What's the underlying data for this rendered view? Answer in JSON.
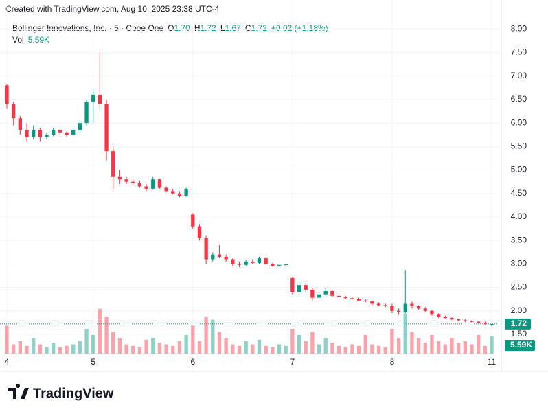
{
  "header": {
    "watermark": "Created with TradingView.com, Aug 10, 2025 23:38 UTC-4",
    "logo": "TradingView"
  },
  "chart_data": {
    "type": "candlestick",
    "legend": {
      "symbol": "Bollinger Innovations, Inc. · 5 · Cboe One",
      "open_label": "O",
      "open": "1.70",
      "high_label": "H",
      "high": "1.72",
      "low_label": "L",
      "low": "1.67",
      "close_label": "C",
      "close": "1.72",
      "change": "+0.02 (+1.18%)",
      "volume_label": "Vol"
    },
    "categories": [
      "4",
      null,
      null,
      null,
      null,
      null,
      null,
      null,
      null,
      null,
      null,
      null,
      null,
      "5",
      null,
      null,
      null,
      null,
      null,
      null,
      null,
      null,
      null,
      null,
      null,
      null,
      null,
      null,
      "6",
      null,
      null,
      null,
      null,
      null,
      null,
      null,
      null,
      null,
      null,
      null,
      null,
      null,
      null,
      "7",
      null,
      null,
      null,
      null,
      null,
      null,
      null,
      null,
      null,
      null,
      null,
      null,
      null,
      null,
      "8",
      null,
      null,
      null,
      null,
      null,
      null,
      null,
      null,
      null,
      null,
      null,
      null,
      null,
      null,
      "11"
    ],
    "open": [
      6.8,
      6.4,
      6.1,
      5.85,
      5.7,
      5.85,
      5.7,
      5.75,
      5.85,
      5.8,
      5.75,
      5.85,
      6.0,
      6.45,
      6.6,
      6.4,
      5.4,
      4.85,
      4.8,
      4.75,
      4.72,
      4.65,
      4.6,
      4.8,
      4.62,
      4.55,
      4.5,
      4.45,
      4.05,
      3.8,
      3.55,
      3.1,
      3.2,
      3.15,
      3.1,
      3.0,
      2.98,
      3.05,
      3.02,
      3.12,
      3.0,
      2.96,
      2.98,
      2.7,
      2.4,
      2.55,
      2.45,
      2.28,
      2.35,
      2.42,
      2.32,
      2.3,
      2.27,
      2.26,
      2.22,
      2.2,
      2.15,
      2.12,
      2.1,
      2.0,
      1.98,
      2.15,
      2.1,
      2.05,
      2.0,
      1.92,
      1.88,
      1.85,
      1.82,
      1.8,
      1.78,
      1.77,
      1.75,
      1.7
    ],
    "high": [
      6.82,
      6.45,
      6.15,
      6.0,
      5.95,
      5.9,
      5.8,
      5.9,
      5.88,
      5.82,
      5.9,
      6.05,
      6.5,
      6.7,
      7.5,
      6.5,
      5.5,
      5.0,
      4.85,
      4.8,
      4.78,
      4.7,
      4.85,
      4.82,
      4.65,
      4.6,
      4.55,
      4.62,
      4.08,
      3.85,
      3.6,
      3.25,
      3.4,
      3.2,
      3.12,
      3.05,
      3.08,
      3.1,
      3.15,
      3.14,
      3.02,
      3.0,
      3.0,
      2.72,
      2.65,
      2.6,
      2.48,
      2.4,
      2.48,
      2.44,
      2.35,
      2.32,
      2.3,
      2.28,
      2.25,
      2.22,
      2.18,
      2.15,
      2.15,
      2.05,
      2.87,
      2.2,
      2.12,
      2.08,
      2.02,
      1.95,
      1.9,
      1.87,
      1.84,
      1.82,
      1.8,
      1.79,
      1.77,
      1.72
    ],
    "low": [
      6.3,
      5.95,
      5.75,
      5.6,
      5.65,
      5.6,
      5.65,
      5.72,
      5.75,
      5.7,
      5.72,
      5.8,
      5.95,
      6.0,
      6.3,
      5.2,
      4.6,
      4.7,
      4.7,
      4.68,
      4.62,
      4.55,
      4.58,
      4.6,
      4.52,
      4.48,
      4.42,
      4.43,
      3.75,
      3.5,
      3.0,
      3.05,
      3.12,
      3.05,
      2.95,
      2.93,
      2.95,
      3.0,
      3.0,
      2.98,
      2.94,
      2.92,
      2.95,
      2.35,
      2.38,
      2.4,
      2.22,
      2.25,
      2.33,
      2.3,
      2.27,
      2.25,
      2.24,
      2.2,
      2.18,
      2.12,
      2.1,
      2.08,
      1.95,
      1.92,
      1.95,
      2.05,
      2.02,
      1.98,
      1.9,
      1.85,
      1.82,
      1.8,
      1.78,
      1.76,
      1.75,
      1.73,
      1.7,
      1.67
    ],
    "close": [
      6.4,
      6.1,
      5.85,
      5.7,
      5.85,
      5.7,
      5.75,
      5.85,
      5.8,
      5.75,
      5.85,
      6.0,
      6.45,
      6.6,
      6.4,
      5.4,
      4.85,
      4.8,
      4.75,
      4.72,
      4.65,
      4.6,
      4.8,
      4.62,
      4.55,
      4.5,
      4.45,
      4.6,
      3.8,
      3.55,
      3.1,
      3.2,
      3.15,
      3.1,
      3.0,
      2.98,
      3.05,
      3.02,
      3.12,
      3.0,
      2.96,
      2.98,
      2.99,
      2.4,
      2.55,
      2.45,
      2.28,
      2.35,
      2.42,
      2.32,
      2.3,
      2.27,
      2.26,
      2.22,
      2.2,
      2.15,
      2.12,
      2.1,
      2.0,
      1.98,
      2.15,
      2.1,
      2.05,
      2.0,
      1.92,
      1.88,
      1.85,
      1.82,
      1.8,
      1.78,
      1.77,
      1.75,
      1.73,
      1.72
    ],
    "up_color": "#089981",
    "down_color": "#f23645",
    "ylim": [
      1.09,
      8.18
    ],
    "yticks": [
      {
        "value": 8,
        "label": "8.00"
      },
      {
        "value": 7.5,
        "label": "7.50"
      },
      {
        "value": 7,
        "label": "7.00"
      },
      {
        "value": 6.5,
        "label": "6.50"
      },
      {
        "value": 6,
        "label": "6.00"
      },
      {
        "value": 5.5,
        "label": "5.50"
      },
      {
        "value": 5,
        "label": "5.00"
      },
      {
        "value": 4.5,
        "label": "4.50"
      },
      {
        "value": 4,
        "label": "4.00"
      },
      {
        "value": 3.5,
        "label": "3.50"
      },
      {
        "value": 3,
        "label": "3.00"
      },
      {
        "value": 2.5,
        "label": "2.50"
      },
      {
        "value": 2,
        "label": "2.00"
      },
      {
        "value": 1.5,
        "label": "1.50"
      }
    ],
    "grid": true,
    "last_price": {
      "value": 1.72,
      "label": "1.72"
    },
    "volume": {
      "values": [
        9000,
        3000,
        4000,
        2500,
        5000,
        3000,
        2000,
        3500,
        2000,
        2500,
        3000,
        4000,
        8000,
        6000,
        14500,
        12000,
        7000,
        5000,
        3000,
        2500,
        2000,
        4500,
        5000,
        3500,
        3000,
        2500,
        4000,
        6000,
        9000,
        4000,
        12000,
        11000,
        7000,
        5000,
        3000,
        2500,
        4000,
        3000,
        4500,
        2500,
        2000,
        3000,
        2500,
        8000,
        6000,
        4000,
        7000,
        3000,
        5000,
        3500,
        2500,
        2000,
        3000,
        2500,
        6000,
        3000,
        2500,
        2000,
        8000,
        5000,
        13000,
        7000,
        5000,
        3500,
        6000,
        4000,
        3000,
        5000,
        3500,
        4000,
        3000,
        6000,
        2500,
        5590
      ],
      "y2lim": [
        0,
        20000
      ],
      "last_label": "5.59K"
    }
  }
}
